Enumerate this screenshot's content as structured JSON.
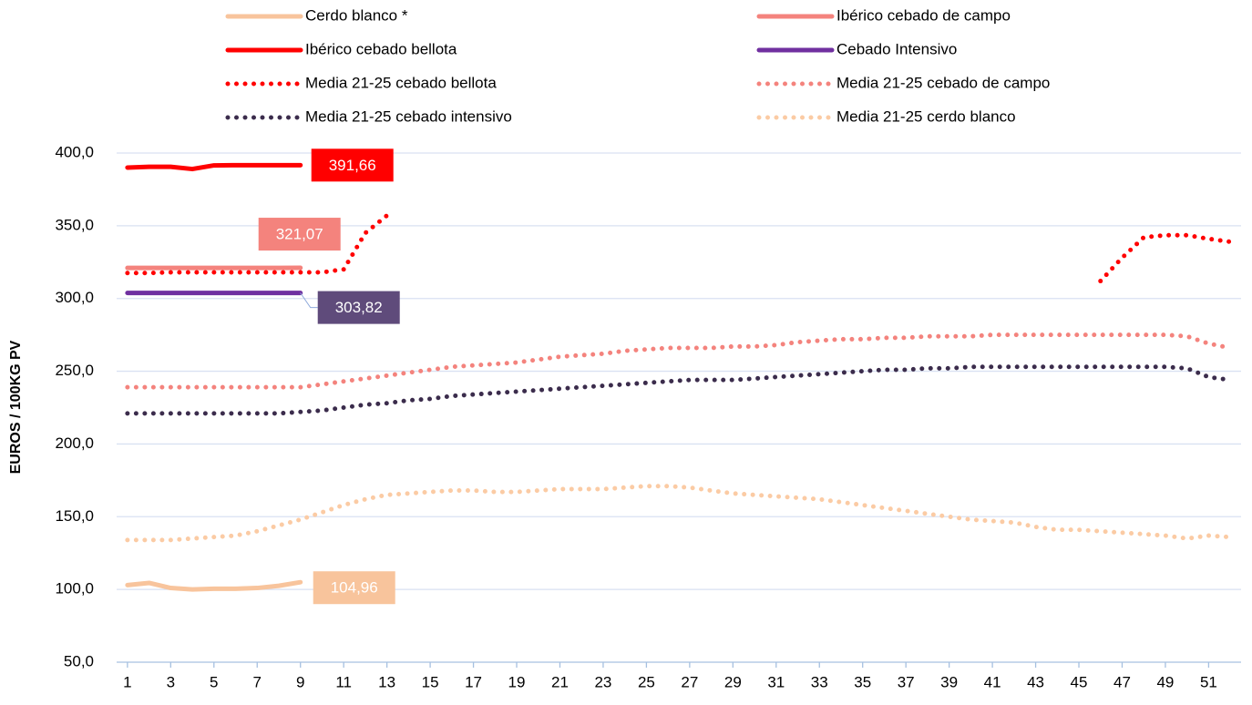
{
  "chart_data": {
    "type": "line",
    "y_label": "EUROS / 100KG PV",
    "x": [
      1,
      2,
      3,
      4,
      5,
      6,
      7,
      8,
      9,
      10,
      11,
      12,
      13,
      14,
      15,
      16,
      17,
      18,
      19,
      20,
      21,
      22,
      23,
      24,
      25,
      26,
      27,
      28,
      29,
      30,
      31,
      32,
      33,
      34,
      35,
      36,
      37,
      38,
      39,
      40,
      41,
      42,
      43,
      44,
      45,
      46,
      47,
      48,
      49,
      50,
      51,
      52
    ],
    "xlim": [
      0.5,
      52.5
    ],
    "xticks": [
      1,
      3,
      5,
      7,
      9,
      11,
      13,
      15,
      17,
      19,
      21,
      23,
      25,
      27,
      29,
      31,
      33,
      35,
      37,
      39,
      41,
      43,
      45,
      47,
      49,
      51
    ],
    "ylim": [
      50,
      400
    ],
    "yticks": [
      {
        "value": 50,
        "label": "50,0"
      },
      {
        "value": 100,
        "label": "100,0"
      },
      {
        "value": 150,
        "label": "150,0"
      },
      {
        "value": 200,
        "label": "200,0"
      },
      {
        "value": 250,
        "label": "250,0"
      },
      {
        "value": 300,
        "label": "300,0"
      },
      {
        "value": 350,
        "label": "350,0"
      },
      {
        "value": 400,
        "label": "400,0"
      }
    ],
    "grid": true,
    "series": [
      {
        "name": "Cerdo blanco *",
        "color": "#f8c49c",
        "style": "solid",
        "values": [
          103,
          104.5,
          101,
          100,
          100.5,
          100.5,
          101,
          102.5,
          104.96,
          null,
          null,
          null,
          null,
          null,
          null,
          null,
          null,
          null,
          null,
          null,
          null,
          null,
          null,
          null,
          null,
          null,
          null,
          null,
          null,
          null,
          null,
          null,
          null,
          null,
          null,
          null,
          null,
          null,
          null,
          null,
          null,
          null,
          null,
          null,
          null,
          null,
          null,
          null,
          null,
          null,
          null,
          null
        ],
        "value_labels": [
          null,
          null,
          null,
          null,
          null,
          null,
          null,
          null,
          "104,96",
          null,
          null,
          null,
          null,
          null,
          null,
          null,
          null,
          null,
          null,
          null,
          null,
          null,
          null,
          null,
          null,
          null,
          null,
          null,
          null,
          null,
          null,
          null,
          null,
          null,
          null,
          null,
          null,
          null,
          null,
          null,
          null,
          null,
          null,
          null,
          null,
          null,
          null,
          null,
          null,
          null,
          null,
          null
        ]
      },
      {
        "name": "Ibérico cebado de campo",
        "color": "#f4837d",
        "style": "solid",
        "values": [
          321,
          321,
          321,
          321,
          321,
          321,
          321,
          321,
          321.07,
          null,
          null,
          null,
          null,
          null,
          null,
          null,
          null,
          null,
          null,
          null,
          null,
          null,
          null,
          null,
          null,
          null,
          null,
          null,
          null,
          null,
          null,
          null,
          null,
          null,
          null,
          null,
          null,
          null,
          null,
          null,
          null,
          null,
          null,
          null,
          null,
          null,
          null,
          null,
          null,
          null,
          null,
          null
        ],
        "value_labels": [
          null,
          null,
          null,
          null,
          null,
          null,
          null,
          null,
          "321,07",
          null,
          null,
          null,
          null,
          null,
          null,
          null,
          null,
          null,
          null,
          null,
          null,
          null,
          null,
          null,
          null,
          null,
          null,
          null,
          null,
          null,
          null,
          null,
          null,
          null,
          null,
          null,
          null,
          null,
          null,
          null,
          null,
          null,
          null,
          null,
          null,
          null,
          null,
          null,
          null,
          null,
          null,
          null
        ]
      },
      {
        "name": "Ibérico cebado bellota",
        "color": "#ff0000",
        "style": "solid",
        "values": [
          390,
          390.5,
          390.5,
          389,
          391.5,
          391.66,
          391.66,
          391.66,
          391.66,
          null,
          null,
          null,
          null,
          null,
          null,
          null,
          null,
          null,
          null,
          null,
          null,
          null,
          null,
          null,
          null,
          null,
          null,
          null,
          null,
          null,
          null,
          null,
          null,
          null,
          null,
          null,
          null,
          null,
          null,
          null,
          null,
          null,
          null,
          null,
          null,
          null,
          null,
          null,
          null,
          null,
          null,
          null
        ],
        "value_labels": [
          null,
          null,
          null,
          null,
          null,
          null,
          null,
          null,
          "391,66",
          null,
          null,
          null,
          null,
          null,
          null,
          null,
          null,
          null,
          null,
          null,
          null,
          null,
          null,
          null,
          null,
          null,
          null,
          null,
          null,
          null,
          null,
          null,
          null,
          null,
          null,
          null,
          null,
          null,
          null,
          null,
          null,
          null,
          null,
          null,
          null,
          null,
          null,
          null,
          null,
          null,
          null,
          null
        ]
      },
      {
        "name": "Cebado Intensivo",
        "color": "#7030a0",
        "style": "solid",
        "values": [
          303.8,
          303.8,
          303.8,
          303.8,
          303.8,
          303.8,
          303.8,
          303.8,
          303.82,
          null,
          null,
          null,
          null,
          null,
          null,
          null,
          null,
          null,
          null,
          null,
          null,
          null,
          null,
          null,
          null,
          null,
          null,
          null,
          null,
          null,
          null,
          null,
          null,
          null,
          null,
          null,
          null,
          null,
          null,
          null,
          null,
          null,
          null,
          null,
          null,
          null,
          null,
          null,
          null,
          null,
          null,
          null
        ],
        "value_labels": [
          null,
          null,
          null,
          null,
          null,
          null,
          null,
          null,
          "303,82",
          null,
          null,
          null,
          null,
          null,
          null,
          null,
          null,
          null,
          null,
          null,
          null,
          null,
          null,
          null,
          null,
          null,
          null,
          null,
          null,
          null,
          null,
          null,
          null,
          null,
          null,
          null,
          null,
          null,
          null,
          null,
          null,
          null,
          null,
          null,
          null,
          null,
          null,
          null,
          null,
          null,
          null,
          null
        ]
      },
      {
        "name": "Media 21-25 cebado bellota",
        "color": "#ff0000",
        "style": "dotted",
        "values": [
          317.5,
          317.5,
          318,
          318,
          318,
          318,
          318,
          318,
          318,
          318,
          320,
          345,
          357,
          null,
          null,
          null,
          null,
          null,
          null,
          null,
          null,
          null,
          null,
          null,
          null,
          null,
          null,
          null,
          null,
          null,
          null,
          null,
          null,
          null,
          null,
          null,
          null,
          null,
          null,
          null,
          null,
          null,
          null,
          null,
          null,
          312,
          328,
          342,
          343.5,
          343.5,
          341,
          339
        ]
      },
      {
        "name": "Media 21-25 cebado de campo",
        "color": "#f4837d",
        "style": "dotted",
        "values": [
          239,
          239,
          239,
          239,
          239,
          239,
          239,
          239,
          239,
          241,
          243,
          245,
          247,
          249,
          251,
          253,
          254,
          255,
          256,
          258,
          260,
          261,
          262,
          264,
          265,
          266,
          266,
          266,
          267,
          267,
          268,
          270,
          271,
          272,
          272,
          273,
          273,
          274,
          274,
          274,
          275,
          275,
          275,
          275,
          275,
          275,
          275,
          275,
          275,
          274,
          269,
          266
        ]
      },
      {
        "name": "Media 21-25 cebado intensivo",
        "color": "#3b2c4c",
        "style": "dotted",
        "values": [
          221,
          221,
          221,
          221,
          221,
          221,
          221,
          221,
          222,
          223,
          225,
          227,
          228,
          230,
          231,
          233,
          234,
          235,
          236,
          237,
          238,
          239,
          240,
          241,
          242,
          243,
          244,
          244,
          244,
          245,
          246,
          247,
          248,
          249,
          250,
          251,
          251,
          252,
          252,
          253,
          253,
          253,
          253,
          253,
          253,
          253,
          253,
          253,
          253,
          252,
          246,
          244
        ]
      },
      {
        "name": "Media 21-25 cerdo blanco",
        "color": "#fbcba4",
        "style": "dotted",
        "values": [
          134,
          134,
          134,
          135,
          136,
          137,
          140,
          144,
          148,
          153,
          158,
          162,
          165,
          166,
          167,
          168,
          168,
          167,
          167,
          168,
          169,
          169,
          169,
          170,
          171,
          171,
          170,
          168,
          166,
          165,
          164,
          163,
          162,
          160,
          158,
          156,
          154,
          152,
          150,
          148,
          147,
          146,
          143,
          141,
          141,
          140,
          139,
          138,
          137,
          135,
          137,
          136
        ]
      }
    ]
  }
}
